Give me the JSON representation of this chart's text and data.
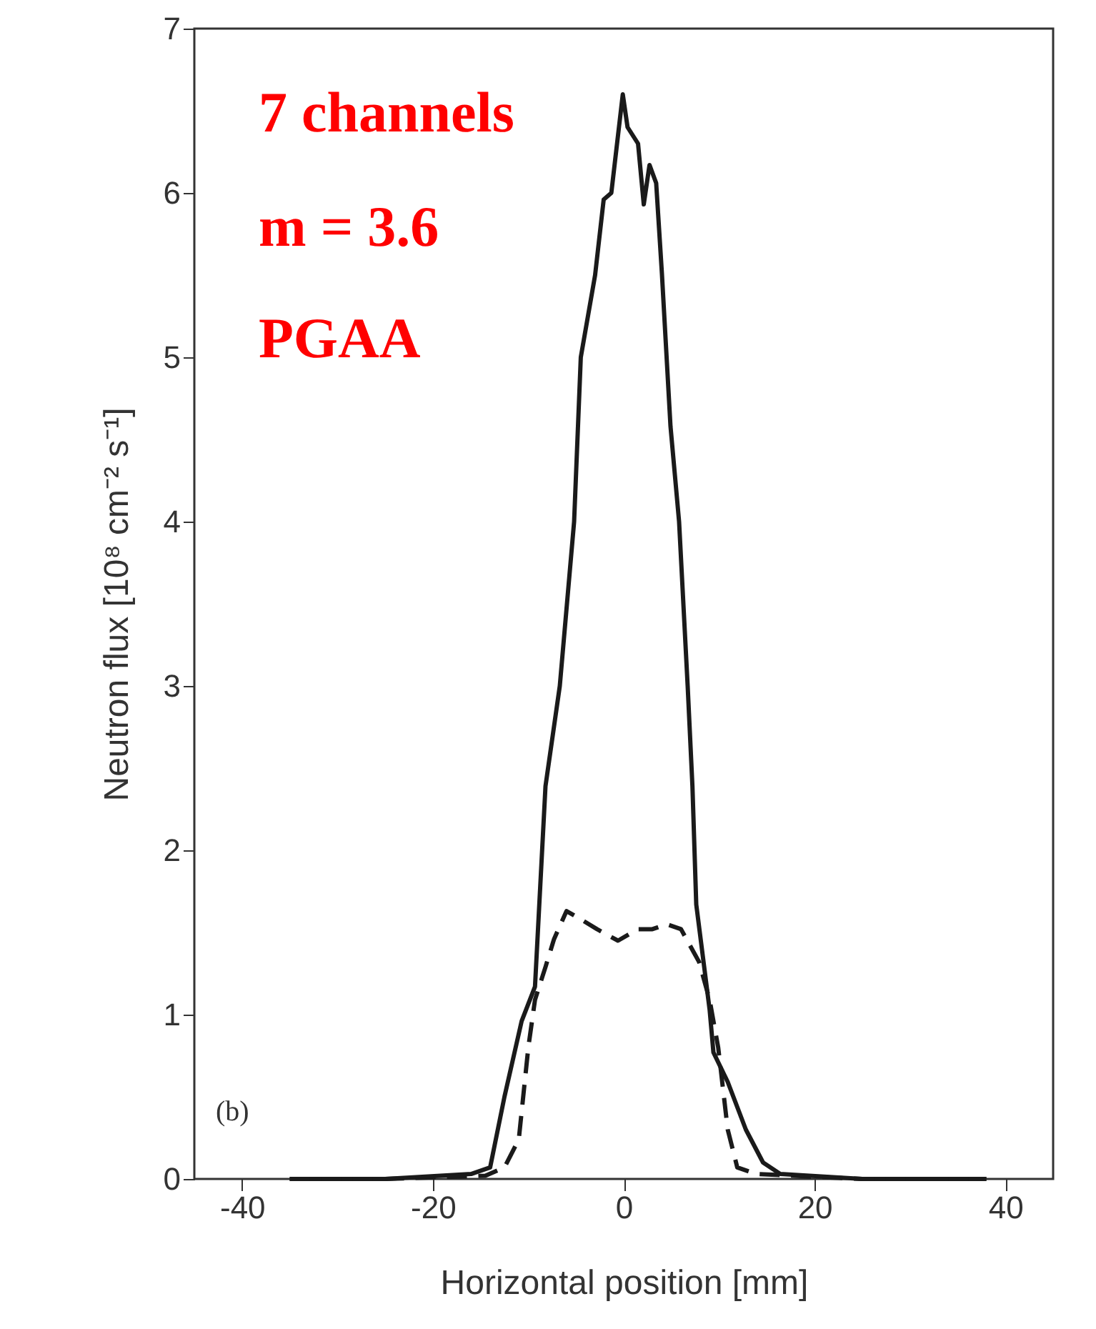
{
  "chart_data": {
    "type": "line",
    "xlabel": "Horizontal position [mm]",
    "ylabel": "Neutron flux [10⁸ cm⁻² s⁻¹]",
    "annotations": [
      "7 channels",
      "m = 3.6",
      "PGAA",
      "(b)"
    ],
    "xlim": [
      -45,
      45
    ],
    "xticks": [
      -40,
      -20,
      0,
      20,
      40
    ],
    "ylim": [
      0,
      7
    ],
    "yticks": [
      0,
      1,
      2,
      3,
      4,
      5,
      6,
      7
    ],
    "grid": false,
    "legend": false,
    "series": [
      {
        "color": "#1a1a1a",
        "line_style": "solid",
        "x": [
          -35,
          -25,
          -16,
          -14,
          -12.5,
          -10.7,
          -9.3,
          -8.2,
          -6.7,
          -5.8,
          -5.2,
          -4.5,
          -3.0,
          -2.1,
          -1.3,
          -0.1,
          0.4,
          1.5,
          2.1,
          2.7,
          3.4,
          4.0,
          4.9,
          5.8,
          6.7,
          7.2,
          7.6,
          9.0,
          9.4,
          10.9,
          12.8,
          14.6,
          16.4,
          25,
          38
        ],
        "values": [
          0,
          0,
          0.03,
          0.07,
          0.5,
          0.96,
          1.17,
          2.39,
          3,
          3.6,
          4,
          5,
          5.5,
          5.96,
          6.0,
          6.6,
          6.4,
          6.3,
          5.93,
          6.17,
          6.06,
          5.51,
          4.58,
          4,
          3,
          2.39,
          1.67,
          1.03,
          0.77,
          0.59,
          0.3,
          0.1,
          0.03,
          0,
          0
        ]
      },
      {
        "color": "#1a1a1a",
        "line_style": "dashed",
        "x": [
          -35,
          -25,
          -14.5,
          -12.5,
          -11.0,
          -10.0,
          -9.3,
          -8.2,
          -7.3,
          -6.0,
          -4.5,
          -2.8,
          -0.6,
          1.5,
          3.0,
          4.5,
          6.0,
          7.9,
          9.0,
          9.9,
          10.9,
          11.9,
          13.9,
          25,
          38
        ],
        "values": [
          0,
          0,
          0.02,
          0.07,
          0.24,
          0.8,
          1.09,
          1.29,
          1.46,
          1.63,
          1.58,
          1.52,
          1.45,
          1.52,
          1.52,
          1.55,
          1.52,
          1.32,
          1.09,
          0.8,
          0.3,
          0.07,
          0.03,
          0,
          0
        ]
      }
    ]
  }
}
